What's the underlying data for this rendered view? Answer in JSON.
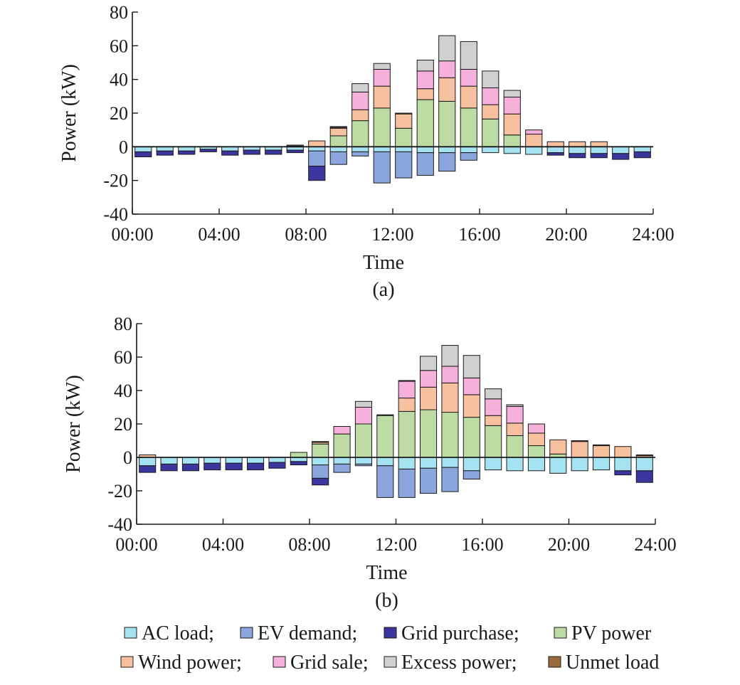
{
  "colors": {
    "ac_load": "#a6e3f2",
    "ev_demand": "#8aa6dc",
    "grid_purchase": "#3b35a0",
    "pv_power": "#bcdca4",
    "wind_power": "#f7c09f",
    "grid_sale": "#f5b0dc",
    "excess_power": "#d0d0d0",
    "unmet_load": "#9b6a3c"
  },
  "legend": {
    "row1": [
      {
        "key": "ac_load",
        "label": "AC load;"
      },
      {
        "key": "ev_demand",
        "label": "EV demand;"
      },
      {
        "key": "grid_purchase",
        "label": "Grid purchase;"
      },
      {
        "key": "pv_power",
        "label": "PV power"
      }
    ],
    "row2": [
      {
        "key": "wind_power",
        "label": "Wind power;"
      },
      {
        "key": "grid_sale",
        "label": "Grid sale;"
      },
      {
        "key": "excess_power",
        "label": "Excess power;"
      },
      {
        "key": "unmet_load",
        "label": "Unmet load"
      }
    ]
  },
  "chart_data": [
    {
      "type": "bar",
      "stacked": true,
      "panel": "(a)",
      "xlabel": "Time",
      "ylabel": "Power (kW)",
      "xticks": [
        "00:00",
        "04:00",
        "08:00",
        "12:00",
        "16:00",
        "20:00",
        "24:00"
      ],
      "xlim": [
        0,
        24
      ],
      "ylim": [
        -40,
        80
      ],
      "yticks": [
        -40,
        -20,
        0,
        20,
        40,
        60,
        80
      ],
      "grid": false,
      "hours": [
        0,
        1,
        2,
        3,
        4,
        5,
        6,
        7,
        8,
        9,
        10,
        11,
        12,
        13,
        14,
        15,
        16,
        17,
        18,
        19,
        20,
        21,
        22,
        23
      ],
      "series": [
        {
          "key": "ac_load",
          "name": "AC load",
          "values": [
            -3,
            -2.5,
            -2.5,
            -1.5,
            -2.5,
            -2,
            -2,
            -2,
            -2.5,
            -3,
            -3,
            -3,
            -3,
            -3.5,
            -3.5,
            -3.5,
            -3.5,
            -4,
            -4.5,
            -3.5,
            -4,
            -4,
            -4,
            -3
          ]
        },
        {
          "key": "ev_demand",
          "name": "EV demand",
          "values": [
            0,
            0,
            0,
            0,
            0,
            0,
            0,
            0,
            -9,
            -7.5,
            -2.5,
            -18.5,
            -15.5,
            -13.5,
            -11,
            -4.5,
            0,
            0,
            0,
            0,
            0,
            0,
            0,
            0
          ]
        },
        {
          "key": "grid_purchase",
          "name": "Grid purchase",
          "values": [
            -3,
            -2.5,
            -2,
            -1.5,
            -2.5,
            -2.5,
            -2.5,
            -1.5,
            -8.5,
            0,
            0,
            0,
            0,
            0,
            0,
            0,
            0,
            0,
            0,
            -1.5,
            -2.5,
            -2.5,
            -3.5,
            -3.5
          ]
        },
        {
          "key": "pv_power",
          "name": "PV power",
          "values": [
            0,
            0,
            0,
            0,
            0,
            0,
            0,
            0,
            0,
            6.5,
            15.5,
            23,
            11,
            28,
            27,
            23,
            16.5,
            7,
            0,
            0,
            0,
            0,
            0,
            0
          ]
        },
        {
          "key": "wind_power",
          "name": "Wind power",
          "values": [
            0,
            0,
            0,
            0,
            0,
            0,
            0,
            0.5,
            3.5,
            4.5,
            6.5,
            13,
            8.5,
            6.5,
            14,
            13,
            8.5,
            12.5,
            7.5,
            3,
            3,
            3,
            0,
            0
          ]
        },
        {
          "key": "grid_sale",
          "name": "Grid sale",
          "values": [
            0,
            0,
            0,
            0,
            0,
            0,
            0,
            0,
            0,
            0.5,
            10.5,
            10,
            0,
            10.5,
            10,
            10,
            10,
            10,
            2.5,
            0,
            0,
            0,
            0,
            0
          ]
        },
        {
          "key": "excess_power",
          "name": "Excess power",
          "values": [
            0,
            0,
            0,
            0,
            0,
            0,
            0,
            0.5,
            0,
            0,
            5,
            3.5,
            0,
            6.5,
            15,
            16.5,
            10,
            4,
            0,
            0,
            0,
            0,
            0,
            0
          ]
        },
        {
          "key": "unmet_load",
          "name": "Unmet load",
          "values": [
            0,
            0,
            0,
            0,
            0,
            0,
            0,
            0,
            0,
            0.5,
            0,
            0,
            0.5,
            0,
            0,
            0,
            0,
            0,
            0,
            0,
            0,
            0,
            0,
            0
          ]
        }
      ]
    },
    {
      "type": "bar",
      "stacked": true,
      "panel": "(b)",
      "xlabel": "Time",
      "ylabel": "Power (kW)",
      "xticks": [
        "00:00",
        "04:00",
        "08:00",
        "12:00",
        "16:00",
        "20:00",
        "24:00"
      ],
      "xlim": [
        0,
        24
      ],
      "ylim": [
        -40,
        80
      ],
      "yticks": [
        -40,
        -20,
        0,
        20,
        40,
        60,
        80
      ],
      "grid": false,
      "hours": [
        0,
        1,
        2,
        3,
        4,
        5,
        6,
        7,
        8,
        9,
        10,
        11,
        12,
        13,
        14,
        15,
        16,
        17,
        18,
        19,
        20,
        21,
        22,
        23
      ],
      "series": [
        {
          "key": "ac_load",
          "name": "AC load",
          "values": [
            -5,
            -4,
            -4,
            -3.5,
            -3.5,
            -3.5,
            -3,
            -2.5,
            -4.5,
            -4,
            -4,
            -5,
            -7,
            -6.5,
            -6,
            -8,
            -7.5,
            -8,
            -8,
            -9.5,
            -8,
            -7.5,
            -8,
            -8
          ]
        },
        {
          "key": "ev_demand",
          "name": "EV demand",
          "values": [
            0,
            0,
            0,
            0,
            0,
            0,
            0,
            0,
            -8,
            -5,
            -1,
            -19,
            -17,
            -15,
            -14.5,
            -5,
            0,
            0,
            0,
            0,
            0,
            0,
            0,
            0
          ]
        },
        {
          "key": "grid_purchase",
          "name": "Grid purchase",
          "values": [
            -4,
            -4,
            -4,
            -4,
            -4,
            -4,
            -3.5,
            -2,
            -4,
            0,
            0,
            0,
            0,
            0,
            0,
            0,
            0,
            0,
            0,
            0,
            0,
            0,
            -2.5,
            -7
          ]
        },
        {
          "key": "pv_power",
          "name": "PV power",
          "values": [
            0,
            0,
            0,
            0,
            0,
            0,
            0,
            3,
            8,
            14,
            20,
            25,
            27.5,
            28.5,
            27,
            24,
            19,
            13,
            7,
            2,
            0,
            0,
            0,
            0
          ]
        },
        {
          "key": "wind_power",
          "name": "Wind power",
          "values": [
            1.5,
            0,
            0,
            0,
            0,
            0,
            0,
            0,
            1,
            0,
            0,
            0,
            8,
            13.5,
            17.5,
            13.5,
            6,
            7.5,
            7.5,
            8.5,
            9.5,
            7,
            6.5,
            1
          ]
        },
        {
          "key": "grid_sale",
          "name": "Grid sale",
          "values": [
            0,
            0,
            0,
            0,
            0,
            0,
            0,
            0,
            0,
            4.5,
            10,
            0,
            10,
            10,
            10,
            10,
            10,
            10,
            5.5,
            0,
            0,
            0,
            0,
            0
          ]
        },
        {
          "key": "excess_power",
          "name": "Excess power",
          "values": [
            0,
            0,
            0,
            0,
            0,
            0,
            0,
            0,
            0,
            0,
            3.5,
            0,
            0,
            8.5,
            12.5,
            13.5,
            6,
            1,
            0,
            0,
            0,
            0,
            0,
            0
          ]
        },
        {
          "key": "unmet_load",
          "name": "Unmet load",
          "values": [
            0,
            0,
            0,
            0,
            0,
            0,
            0,
            0,
            0.5,
            0,
            0,
            0.5,
            0.5,
            0,
            0,
            0,
            0,
            0,
            0,
            0,
            0.5,
            0.5,
            0,
            0.5
          ]
        }
      ]
    }
  ]
}
